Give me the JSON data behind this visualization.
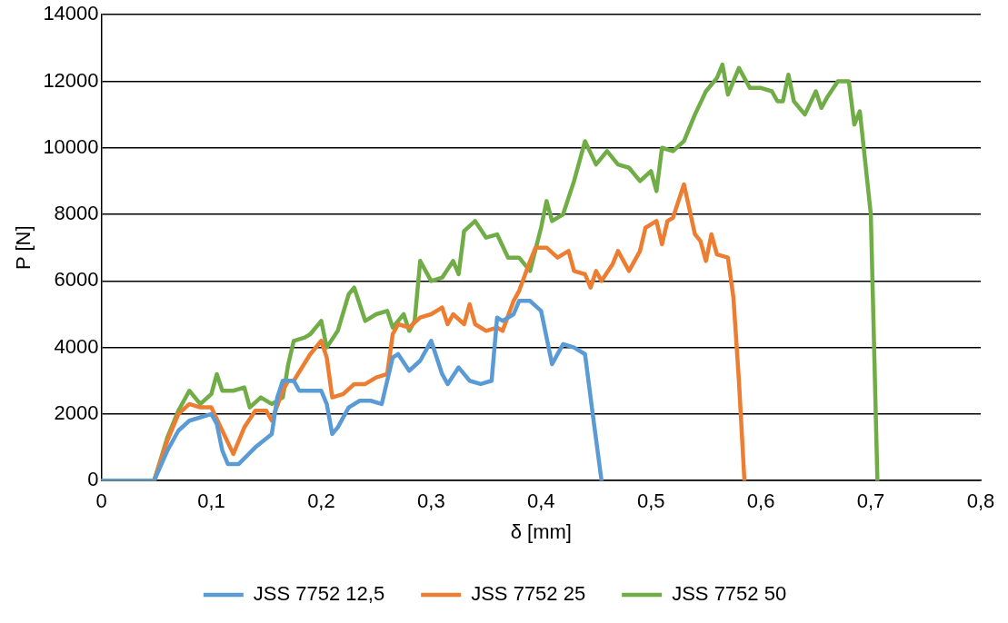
{
  "chart_data": {
    "type": "line",
    "xlabel": "δ [mm]",
    "ylabel": "P [N]",
    "xlim": [
      0,
      0.8
    ],
    "xticks": [
      0,
      {
        "value": 0.1,
        "label": "0,1"
      },
      {
        "value": 0.2,
        "label": "0,2"
      },
      {
        "value": 0.3,
        "label": "0,3"
      },
      {
        "value": 0.4,
        "label": "0,4"
      },
      {
        "value": 0.5,
        "label": "0,5"
      },
      {
        "value": 0.6,
        "label": "0,6"
      },
      {
        "value": 0.7,
        "label": "0,7"
      },
      {
        "value": 0.8,
        "label": "0,8"
      }
    ],
    "ylim": [
      0,
      14000
    ],
    "yticks": [
      0,
      2000,
      4000,
      6000,
      8000,
      10000,
      12000,
      14000
    ],
    "grid": "y",
    "legend": "bottom",
    "marker": "none",
    "line_style": "solid",
    "series": [
      {
        "name": "JSS 7752 12,5",
        "color": "#5b9bd5",
        "x": [
          0,
          0.048,
          0.06,
          0.07,
          0.08,
          0.1,
          0.105,
          0.11,
          0.115,
          0.125,
          0.14,
          0.155,
          0.16,
          0.165,
          0.175,
          0.18,
          0.19,
          0.2,
          0.205,
          0.21,
          0.215,
          0.225,
          0.235,
          0.245,
          0.255,
          0.265,
          0.27,
          0.28,
          0.29,
          0.3,
          0.31,
          0.315,
          0.325,
          0.335,
          0.345,
          0.355,
          0.36,
          0.365,
          0.375,
          0.38,
          0.39,
          0.4,
          0.41,
          0.415,
          0.42,
          0.43,
          0.44,
          0.447,
          0.455
        ],
        "values": [
          0,
          0,
          900,
          1500,
          1800,
          2000,
          1700,
          900,
          500,
          500,
          1000,
          1400,
          2500,
          3000,
          3000,
          2700,
          2700,
          2700,
          2300,
          1400,
          1600,
          2200,
          2400,
          2400,
          2300,
          3700,
          3800,
          3300,
          3600,
          4200,
          3200,
          2900,
          3400,
          3000,
          2900,
          3000,
          4900,
          4800,
          5000,
          5400,
          5400,
          5100,
          3500,
          3800,
          4100,
          4000,
          3800,
          2000,
          0
        ]
      },
      {
        "name": "JSS 7752 25",
        "color": "#ed7d31",
        "x": [
          0,
          0.048,
          0.06,
          0.07,
          0.08,
          0.09,
          0.1,
          0.11,
          0.12,
          0.13,
          0.14,
          0.15,
          0.155,
          0.165,
          0.17,
          0.175,
          0.19,
          0.2,
          0.205,
          0.21,
          0.22,
          0.23,
          0.24,
          0.25,
          0.26,
          0.265,
          0.27,
          0.28,
          0.29,
          0.3,
          0.31,
          0.315,
          0.32,
          0.33,
          0.335,
          0.34,
          0.35,
          0.36,
          0.365,
          0.375,
          0.38,
          0.39,
          0.395,
          0.405,
          0.415,
          0.425,
          0.43,
          0.44,
          0.445,
          0.45,
          0.455,
          0.465,
          0.47,
          0.48,
          0.49,
          0.495,
          0.505,
          0.51,
          0.515,
          0.52,
          0.53,
          0.54,
          0.545,
          0.55,
          0.555,
          0.56,
          0.57,
          0.575,
          0.58,
          0.585
        ],
        "values": [
          0,
          0,
          1200,
          2000,
          2300,
          2200,
          2200,
          1500,
          800,
          1600,
          2100,
          2100,
          1800,
          2700,
          3000,
          3000,
          3800,
          4200,
          3700,
          2500,
          2600,
          2900,
          2900,
          3100,
          3200,
          4400,
          4700,
          4600,
          4900,
          5000,
          5200,
          4700,
          5000,
          4700,
          5300,
          4700,
          4500,
          4600,
          4500,
          5400,
          5700,
          6600,
          7000,
          7000,
          6700,
          6900,
          6300,
          6200,
          5800,
          6300,
          6000,
          6500,
          6900,
          6300,
          6900,
          7600,
          7800,
          7100,
          7800,
          7900,
          8900,
          7400,
          7200,
          6600,
          7400,
          6800,
          6700,
          5500,
          3000,
          0
        ]
      },
      {
        "name": "JSS 7752 50",
        "color": "#70ad47",
        "x": [
          0,
          0.048,
          0.06,
          0.07,
          0.08,
          0.09,
          0.1,
          0.105,
          0.11,
          0.12,
          0.13,
          0.135,
          0.145,
          0.155,
          0.165,
          0.17,
          0.175,
          0.185,
          0.19,
          0.2,
          0.205,
          0.215,
          0.225,
          0.23,
          0.24,
          0.25,
          0.26,
          0.265,
          0.275,
          0.28,
          0.285,
          0.29,
          0.3,
          0.31,
          0.32,
          0.325,
          0.33,
          0.34,
          0.35,
          0.36,
          0.37,
          0.38,
          0.39,
          0.4,
          0.405,
          0.41,
          0.42,
          0.43,
          0.44,
          0.45,
          0.46,
          0.47,
          0.48,
          0.49,
          0.5,
          0.505,
          0.51,
          0.52,
          0.53,
          0.54,
          0.55,
          0.56,
          0.565,
          0.57,
          0.58,
          0.59,
          0.6,
          0.61,
          0.615,
          0.62,
          0.625,
          0.63,
          0.64,
          0.65,
          0.655,
          0.66,
          0.67,
          0.68,
          0.685,
          0.69,
          0.7,
          0.706
        ],
        "values": [
          0,
          0,
          1300,
          2100,
          2700,
          2300,
          2600,
          3200,
          2700,
          2700,
          2800,
          2200,
          2500,
          2300,
          2500,
          3500,
          4200,
          4300,
          4400,
          4800,
          4000,
          4500,
          5600,
          5800,
          4800,
          5000,
          5100,
          4600,
          5000,
          4500,
          4800,
          6600,
          6000,
          6100,
          6600,
          6200,
          7500,
          7800,
          7300,
          7400,
          6700,
          6700,
          6300,
          7600,
          8400,
          7800,
          8000,
          9000,
          10200,
          9500,
          9900,
          9500,
          9400,
          9000,
          9300,
          8700,
          10000,
          9900,
          10200,
          11000,
          11700,
          12100,
          12500,
          11600,
          12400,
          11800,
          11800,
          11700,
          11400,
          11400,
          12200,
          11400,
          11000,
          11700,
          11200,
          11500,
          12000,
          12000,
          10700,
          11100,
          8000,
          0
        ]
      }
    ]
  }
}
